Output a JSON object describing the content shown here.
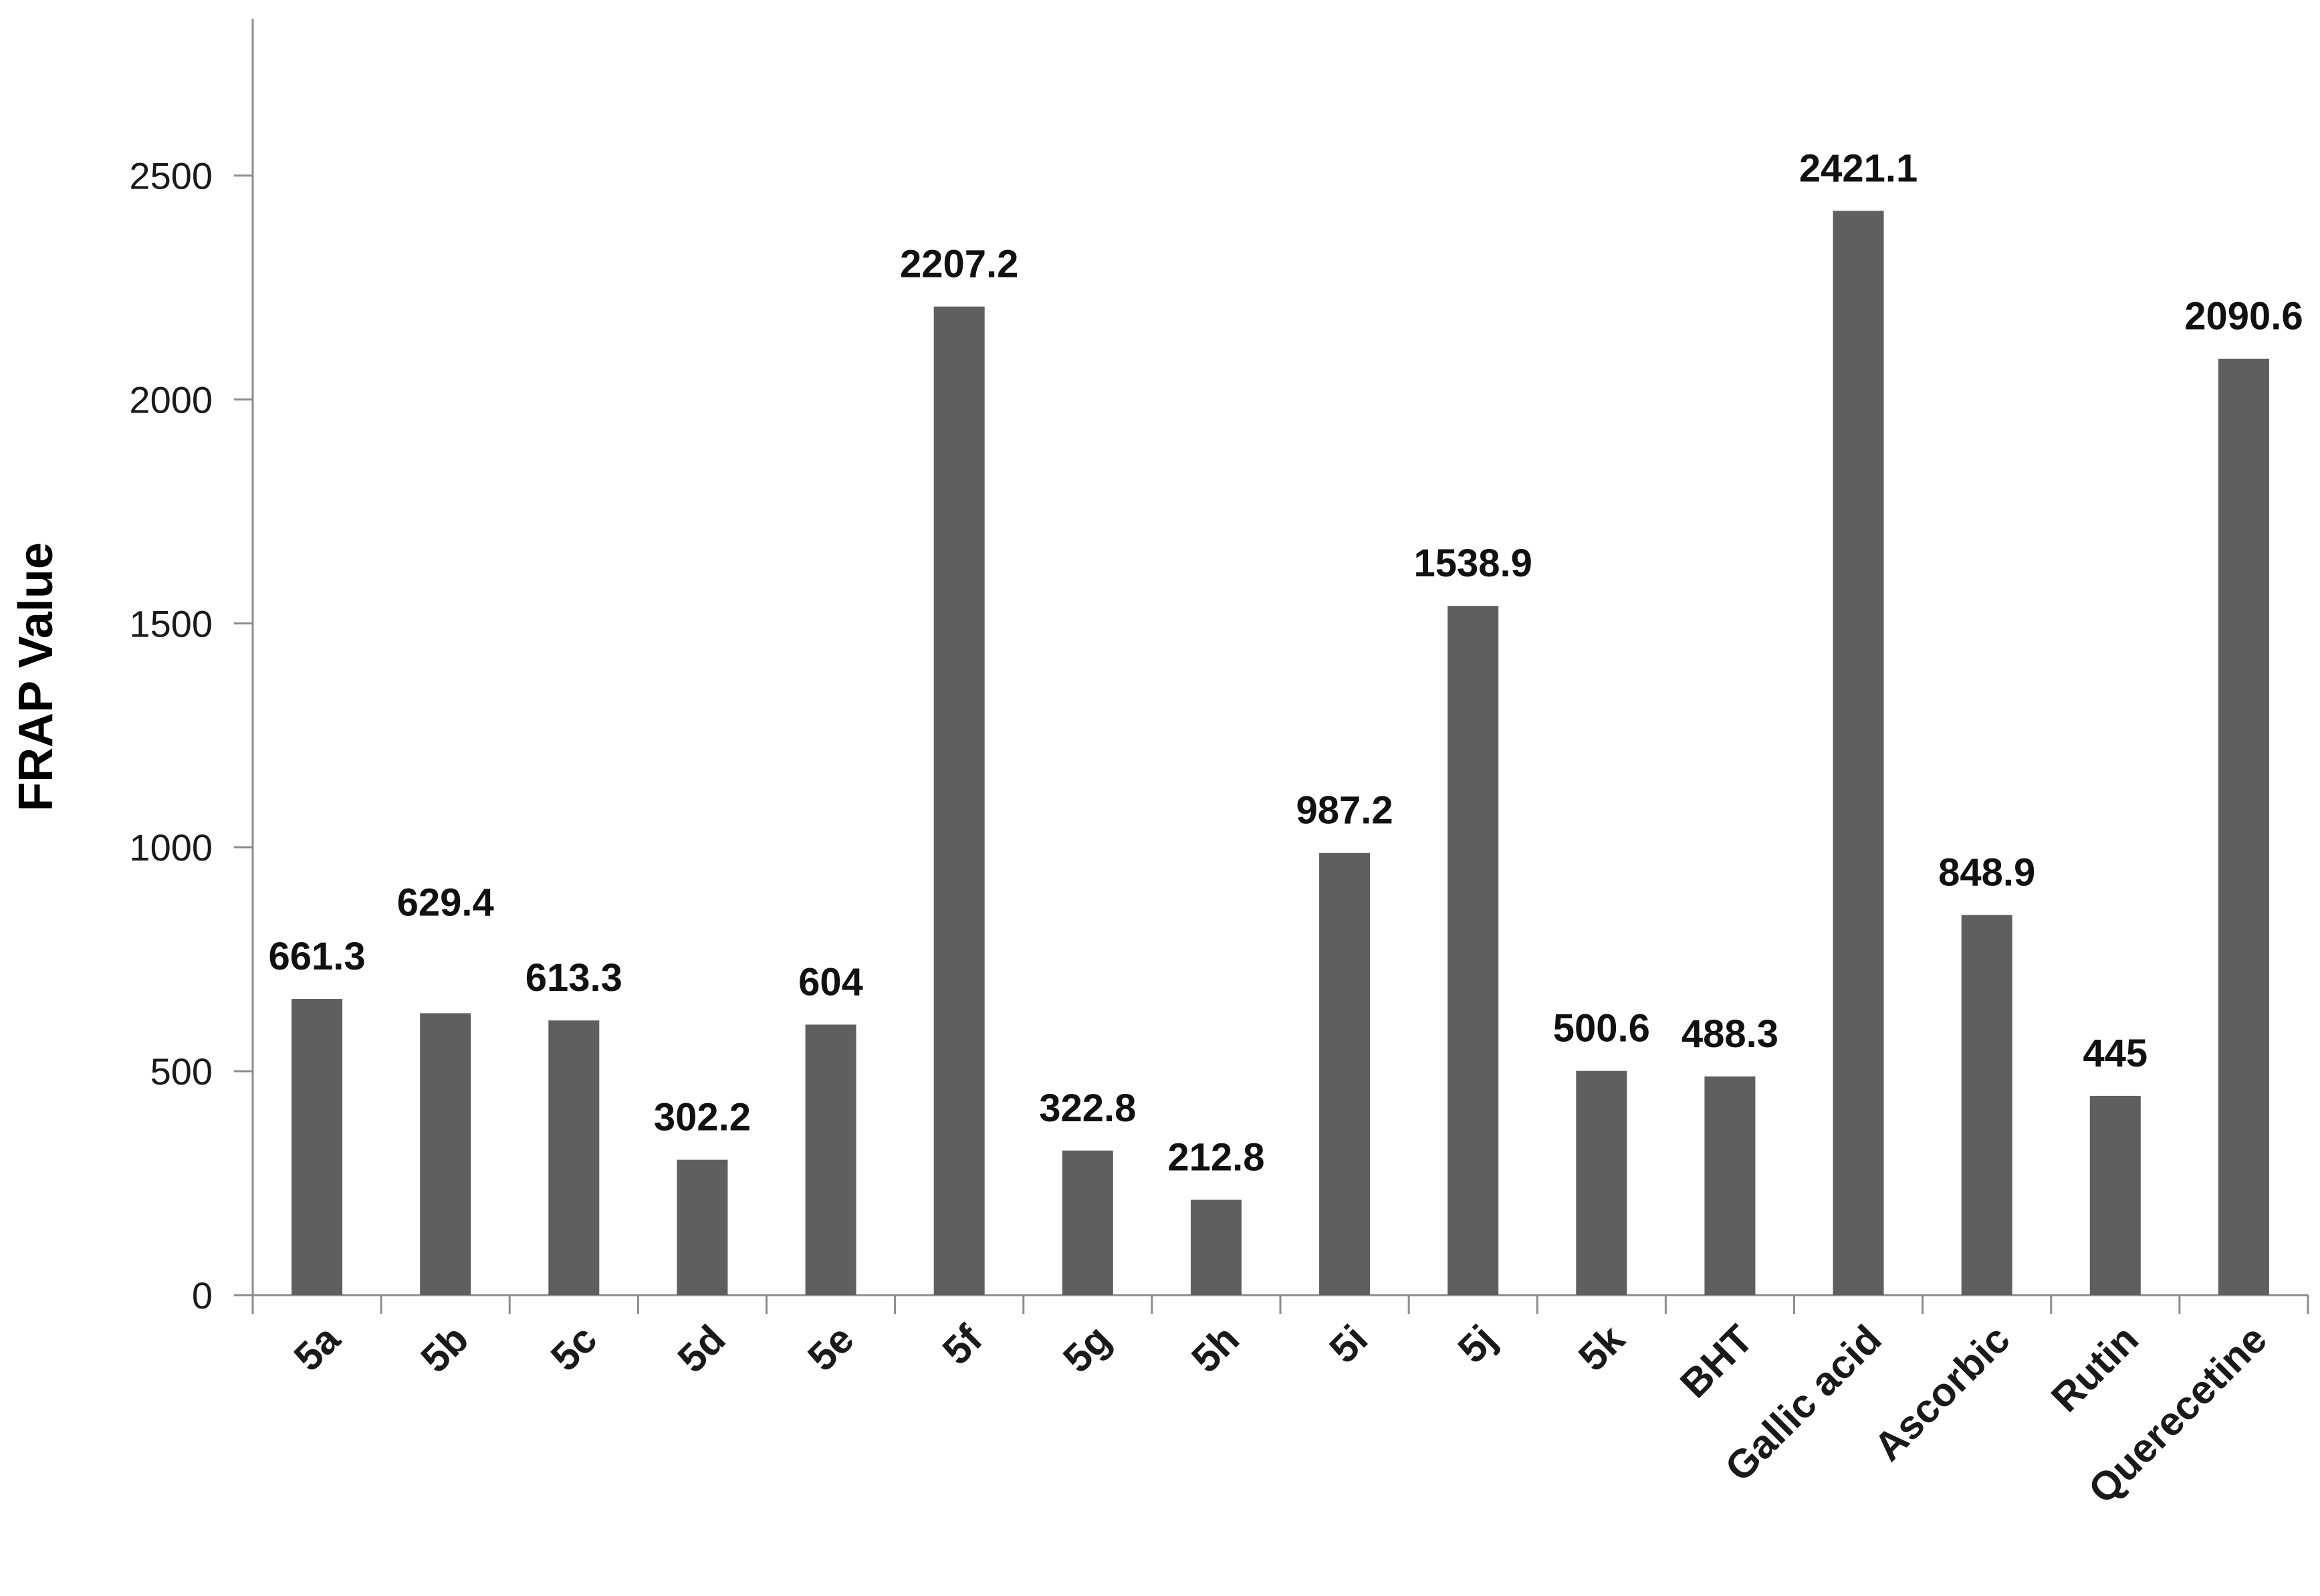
{
  "chart_data": {
    "type": "bar",
    "title": "",
    "xlabel": "",
    "ylabel": "FRAP Value",
    "categories": [
      "5a",
      "5b",
      "5c",
      "5d",
      "5e",
      "5f",
      "5g",
      "5h",
      "5i",
      "5j",
      "5k",
      "BHT",
      "Gallic acid",
      "Ascorbic",
      "Rutin",
      "Querecetine"
    ],
    "values": [
      661.3,
      629.4,
      613.3,
      302.2,
      604,
      2207.2,
      322.8,
      212.8,
      987.2,
      1538.9,
      500.6,
      488.3,
      2421.1,
      848.9,
      445,
      2090.6
    ],
    "data_labels": [
      "661.3",
      "629.4",
      "613.3",
      "302.2",
      "604",
      "2207.2",
      "322.8",
      "212.8",
      "987.2",
      "1538.9",
      "500.6",
      "488.3",
      "2421.1",
      "848.9",
      "445",
      "2090.6"
    ],
    "yticks": [
      0,
      500,
      1000,
      1500,
      2000,
      2500
    ],
    "ylim": [
      0,
      2850
    ],
    "bar_color": "#5f5f5f",
    "axis_color": "#8c8c8c",
    "grid": false,
    "legend": "none"
  }
}
